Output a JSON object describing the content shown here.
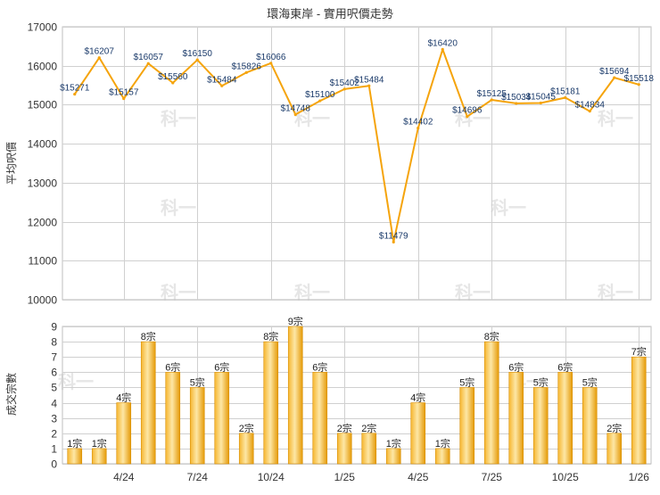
{
  "chart_data": [
    {
      "type": "line",
      "title": "環海東岸 - 實用呎價走勢",
      "ylabel": "平均呎價",
      "ylim": [
        10000,
        17000
      ],
      "yticks": [
        10000,
        11000,
        12000,
        13000,
        14000,
        15000,
        16000,
        17000
      ],
      "grid": true,
      "color": "#f5a40c",
      "series": [
        {
          "values": [
            15271,
            16207,
            15157,
            16057,
            15560,
            16150,
            15484,
            15826,
            16066,
            14748,
            15100,
            15402,
            15484,
            11479,
            14402,
            16420,
            14696,
            15125,
            15034,
            15045,
            15181,
            14834,
            15694,
            15518
          ],
          "labels": [
            "$15271",
            "$16207",
            "$15157",
            "$16057",
            "$15560",
            "$16150",
            "$15484",
            "$15826",
            "$16066",
            "$14748",
            "$15100",
            "$15402",
            "$15484",
            "$11479",
            "$14402",
            "$16420",
            "$14696",
            "$15125",
            "$15034",
            "$15045",
            "$15181",
            "$14834",
            "$15694",
            "$15518"
          ]
        }
      ]
    },
    {
      "type": "bar",
      "ylabel": "成交宗數",
      "ylim": [
        0,
        9
      ],
      "yticks": [
        0,
        1,
        2,
        3,
        4,
        5,
        6,
        7,
        8,
        9
      ],
      "grid": true,
      "color": "#f5a40c",
      "xticks": [
        "4/24",
        "7/24",
        "10/24",
        "1/25",
        "4/25",
        "7/25",
        "10/25",
        "1/26"
      ],
      "xtick_index": [
        2,
        5,
        8,
        11,
        14,
        17,
        20,
        23
      ],
      "values": [
        1,
        1,
        4,
        8,
        6,
        5,
        6,
        2,
        8,
        9,
        6,
        2,
        2,
        1,
        4,
        1,
        5,
        8,
        6,
        5,
        6,
        5,
        2,
        7
      ],
      "labels": [
        "1宗",
        "1宗",
        "4宗",
        "8宗",
        "6宗",
        "5宗",
        "6宗",
        "2宗",
        "8宗",
        "9宗",
        "6宗",
        "2宗",
        "2宗",
        "1宗",
        "4宗",
        "1宗",
        "5宗",
        "8宗",
        "6宗",
        "5宗",
        "6宗",
        "5宗",
        "2宗",
        "7宗"
      ]
    }
  ],
  "watermark": "科一"
}
